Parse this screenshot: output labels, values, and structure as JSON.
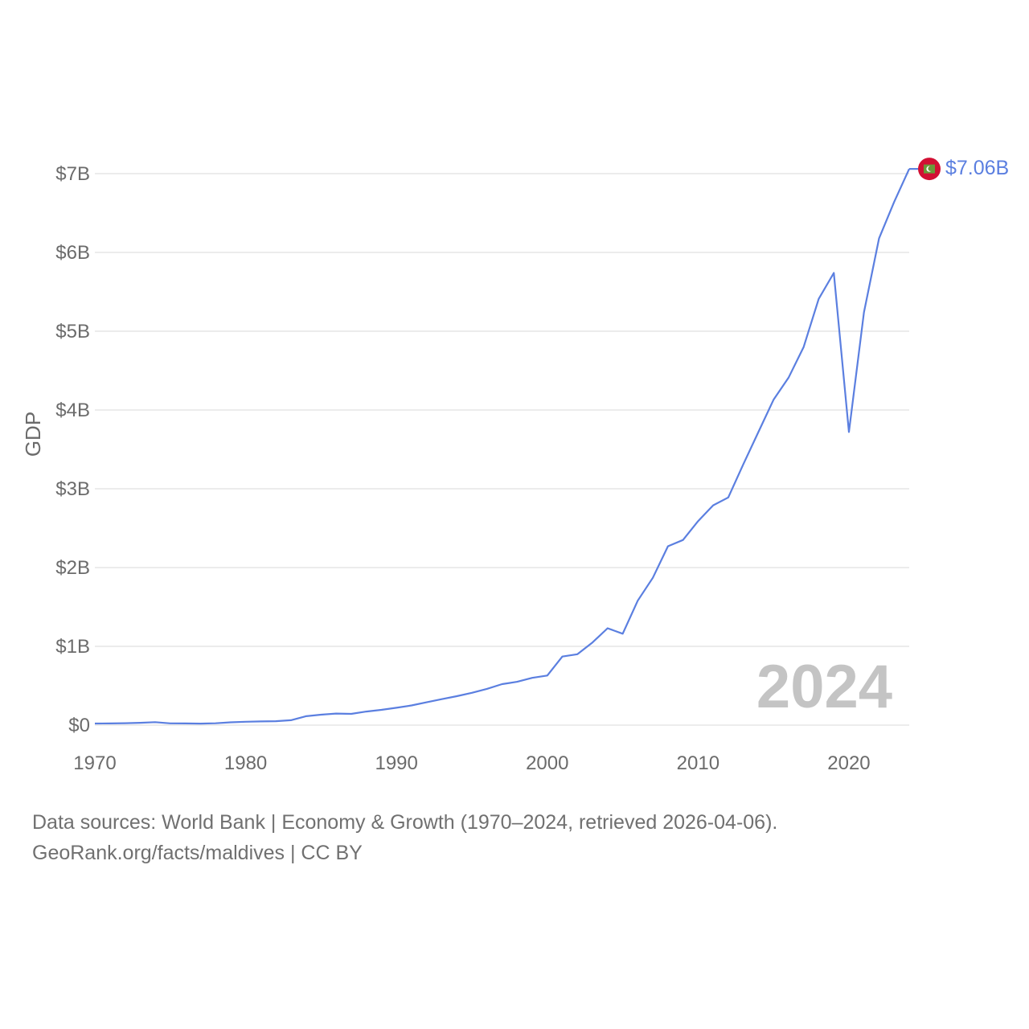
{
  "chart_data": {
    "type": "line",
    "title": "",
    "xlabel": "",
    "ylabel": "GDP",
    "xlim": [
      1970,
      2024
    ],
    "ylim": [
      0,
      7000000000
    ],
    "x_ticks": [
      1970,
      1980,
      1990,
      2000,
      2010,
      2020
    ],
    "y_ticks": [
      {
        "value": 0,
        "label": "$0"
      },
      {
        "value": 1000000000,
        "label": "$1B"
      },
      {
        "value": 2000000000,
        "label": "$2B"
      },
      {
        "value": 3000000000,
        "label": "$3B"
      },
      {
        "value": 4000000000,
        "label": "$4B"
      },
      {
        "value": 5000000000,
        "label": "$5B"
      },
      {
        "value": 6000000000,
        "label": "$6B"
      },
      {
        "value": 7000000000,
        "label": "$7B"
      }
    ],
    "grid": true,
    "line_color": "#5b7fe0",
    "series": [
      {
        "name": "Maldives",
        "x": [
          1970,
          1971,
          1972,
          1973,
          1974,
          1975,
          1976,
          1977,
          1978,
          1979,
          1980,
          1981,
          1982,
          1983,
          1984,
          1985,
          1986,
          1987,
          1988,
          1989,
          1990,
          1991,
          1992,
          1993,
          1994,
          1995,
          1996,
          1997,
          1998,
          1999,
          2000,
          2001,
          2002,
          2003,
          2004,
          2005,
          2006,
          2007,
          2008,
          2009,
          2010,
          2011,
          2012,
          2013,
          2014,
          2015,
          2016,
          2017,
          2018,
          2019,
          2020,
          2021,
          2022,
          2023,
          2024
        ],
        "values": [
          20000000,
          21000000,
          24000000,
          30000000,
          38000000,
          22000000,
          21000000,
          19000000,
          23000000,
          36000000,
          43000000,
          47000000,
          50000000,
          62000000,
          113000000,
          133000000,
          147000000,
          143000000,
          172000000,
          194000000,
          220000000,
          250000000,
          290000000,
          330000000,
          367000000,
          410000000,
          460000000,
          520000000,
          550000000,
          600000000,
          630000000,
          870000000,
          900000000,
          1050000000,
          1230000000,
          1160000000,
          1580000000,
          1870000000,
          2270000000,
          2350000000,
          2590000000,
          2790000000,
          2890000000,
          3310000000,
          3720000000,
          4130000000,
          4410000000,
          4800000000,
          5410000000,
          5740000000,
          3720000000,
          5240000000,
          6180000000,
          6640000000,
          7060000000
        ]
      }
    ],
    "annotations": {
      "year_overlay": "2024",
      "end_value_label": "$7.06B"
    }
  },
  "footer": {
    "line1": "Data sources: World Bank | Economy & Growth (1970–2024, retrieved 2026-04-06).",
    "line2": "GeoRank.org/facts/maldives | CC BY"
  }
}
